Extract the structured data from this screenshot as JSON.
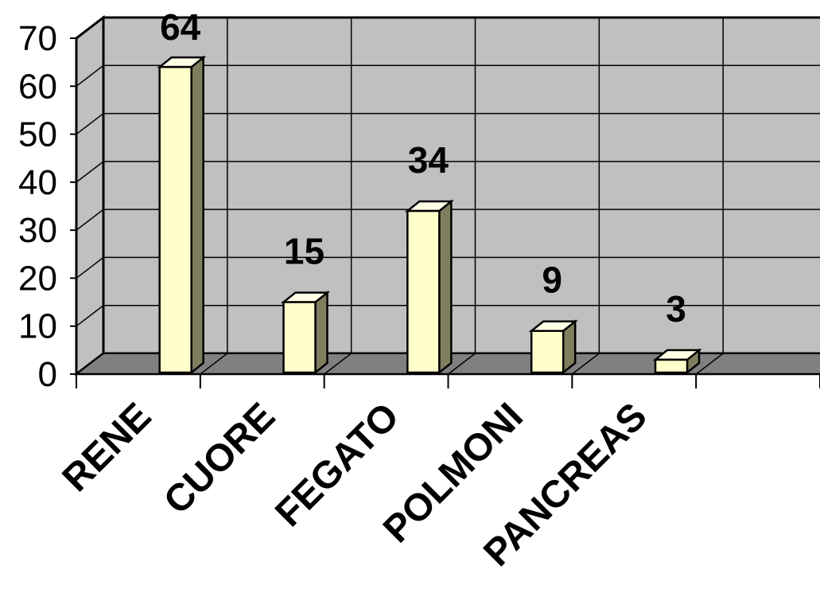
{
  "chart_data": {
    "type": "bar",
    "categories": [
      "RENE",
      "CUORE",
      "FEGATO",
      "POLMONI",
      "PANCREAS",
      ""
    ],
    "series": [
      {
        "values": [
          64,
          15,
          34,
          9,
          3,
          null
        ]
      }
    ],
    "data_labels": [
      "64",
      "15",
      "34",
      "9",
      "3"
    ],
    "y_ticks": [
      "0",
      "10",
      "20",
      "30",
      "40",
      "50",
      "60",
      "70"
    ],
    "ylim": [
      0,
      70
    ],
    "title": "",
    "xlabel": "",
    "ylabel": "",
    "grid": true,
    "style": "3d-column",
    "colors": {
      "bar_front": "#ffffcc",
      "bar_side": "#7f7f5f",
      "bar_top": "#ffffe6",
      "wall": "#c0c0c0",
      "floor": "#808080",
      "gridline": "#000000"
    }
  }
}
